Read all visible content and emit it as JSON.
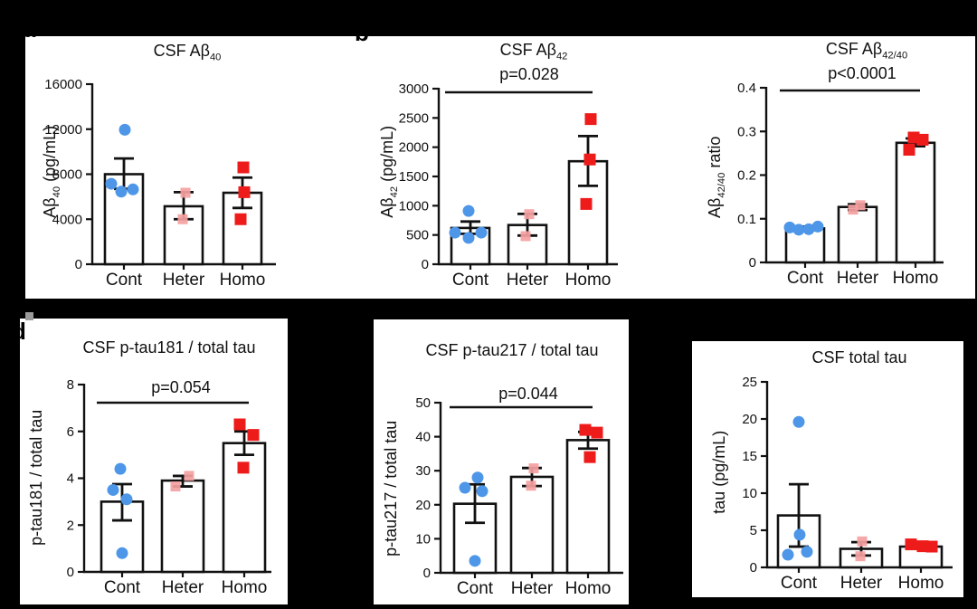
{
  "figure": {
    "background": "#000000",
    "panel_background": "#ffffff",
    "panel_labels": [
      {
        "id": "a",
        "text": "a"
      },
      {
        "id": "b",
        "text": "b"
      },
      {
        "id": "d",
        "text": "d"
      }
    ],
    "groups": [
      "Cont",
      "Heter",
      "Homo"
    ],
    "marker_colors": {
      "Cont": "#4D96E8",
      "Heter": "#F5A0A0",
      "Homo": "#EE1B1B"
    },
    "marker_shapes": {
      "Cont": "circle",
      "Heter": "square",
      "Homo": "square"
    },
    "axis_color": "#111111"
  },
  "chart_data": [
    {
      "id": "csf-ab40",
      "type": "bar",
      "title": {
        "base": "CSF Aβ",
        "sub": "40",
        "suffix": ""
      },
      "ylabel": {
        "base": "Aβ",
        "sub": "40",
        "suffix": " (pg/mL)"
      },
      "ylim": [
        0,
        16000
      ],
      "yticks": [
        0,
        4000,
        8000,
        12000,
        16000
      ],
      "ytick_labels": [
        "0",
        "4000",
        "8000",
        "12000",
        "16000"
      ],
      "categories": [
        "Cont",
        "Heter",
        "Homo"
      ],
      "bar_means": [
        8000,
        5150,
        6350
      ],
      "error_low": [
        6700,
        4000,
        5000
      ],
      "error_high": [
        9400,
        6400,
        7700
      ],
      "points": {
        "Cont": [
          [
            11950,
            1
          ],
          [
            7150,
            -14
          ],
          [
            6450,
            -3
          ],
          [
            6650,
            10
          ]
        ],
        "Heter": [
          [
            6350,
            2
          ],
          [
            4000,
            -1
          ]
        ],
        "Homo": [
          [
            8600,
            1
          ],
          [
            6400,
            2
          ],
          [
            4000,
            -2
          ]
        ]
      },
      "significance": null
    },
    {
      "id": "csf-ab42",
      "type": "bar",
      "title": {
        "base": "CSF Aβ",
        "sub": "42",
        "suffix": ""
      },
      "ylabel": {
        "base": "Aβ",
        "sub": "42",
        "suffix": " (pg/mL)"
      },
      "ylim": [
        0,
        3000
      ],
      "yticks": [
        0,
        500,
        1000,
        1500,
        2000,
        2500,
        3000
      ],
      "ytick_labels": [
        "0",
        "500",
        "1000",
        "1500",
        "2000",
        "2500",
        "3000"
      ],
      "categories": [
        "Cont",
        "Heter",
        "Homo"
      ],
      "bar_means": [
        620,
        670,
        1760
      ],
      "error_low": [
        520,
        490,
        1340
      ],
      "error_high": [
        730,
        860,
        2190
      ],
      "points": {
        "Cont": [
          [
            910,
            -2
          ],
          [
            540,
            -17
          ],
          [
            540,
            12
          ],
          [
            450,
            -2
          ]
        ],
        "Heter": [
          [
            855,
            2
          ],
          [
            480,
            -2
          ]
        ],
        "Homo": [
          [
            2480,
            3
          ],
          [
            1790,
            2
          ],
          [
            1030,
            -2
          ]
        ]
      },
      "significance": {
        "from": "Cont",
        "to": "Homo",
        "label": "p=0.028"
      }
    },
    {
      "id": "csf-ab42-40",
      "type": "bar",
      "title": {
        "base": "CSF Aβ",
        "sub": "42/40",
        "suffix": ""
      },
      "ylabel": {
        "base": "Aβ",
        "sub": "42/40",
        "suffix": " ratio"
      },
      "ylim": [
        0,
        0.4
      ],
      "yticks": [
        0,
        0.1,
        0.2,
        0.3,
        0.4
      ],
      "ytick_labels": [
        "0",
        "0.1",
        "0.2",
        "0.3",
        "0.4"
      ],
      "categories": [
        "Cont",
        "Heter",
        "Homo"
      ],
      "bar_means": [
        0.078,
        0.127,
        0.274
      ],
      "error_low": [
        0.074,
        0.12,
        0.266
      ],
      "error_high": [
        0.082,
        0.133,
        0.284
      ],
      "points": {
        "Cont": [
          [
            0.08,
            -17
          ],
          [
            0.075,
            -7
          ],
          [
            0.076,
            4
          ],
          [
            0.082,
            14
          ]
        ],
        "Heter": [
          [
            0.131,
            3
          ],
          [
            0.121,
            -5
          ]
        ],
        "Homo": [
          [
            0.286,
            -2
          ],
          [
            0.281,
            8
          ],
          [
            0.258,
            -7
          ]
        ]
      },
      "significance": {
        "from": "Cont",
        "to": "Homo",
        "label": "p<0.0001"
      }
    },
    {
      "id": "csf-ptau181",
      "type": "bar",
      "title": {
        "base": "CSF p-tau181 / total tau",
        "sub": "",
        "suffix": ""
      },
      "ylabel": {
        "base": "p-tau181 / total tau",
        "sub": "",
        "suffix": ""
      },
      "ylim": [
        0,
        8
      ],
      "yticks": [
        0,
        2,
        4,
        6,
        8
      ],
      "ytick_labels": [
        "0",
        "2",
        "4",
        "6",
        "8"
      ],
      "categories": [
        "Cont",
        "Heter",
        "Homo"
      ],
      "bar_means": [
        3.0,
        3.9,
        5.5
      ],
      "error_low": [
        2.2,
        3.65,
        5.0
      ],
      "error_high": [
        3.75,
        4.1,
        6.0
      ],
      "points": {
        "Cont": [
          [
            4.4,
            -2
          ],
          [
            3.5,
            -10
          ],
          [
            3.1,
            5
          ],
          [
            0.8,
            0
          ]
        ],
        "Heter": [
          [
            4.1,
            7
          ],
          [
            3.65,
            -8
          ]
        ],
        "Homo": [
          [
            6.3,
            -5
          ],
          [
            5.85,
            10
          ],
          [
            4.45,
            -1
          ]
        ]
      },
      "significance": {
        "from": "Cont",
        "to": "Homo",
        "label": "p=0.054"
      }
    },
    {
      "id": "csf-ptau217",
      "type": "bar",
      "title": {
        "base": "CSF p-tau217 / total tau",
        "sub": "",
        "suffix": ""
      },
      "ylabel": {
        "base": "p-tau217 / total tau",
        "sub": "",
        "suffix": ""
      },
      "ylim": [
        0,
        50
      ],
      "yticks": [
        0,
        10,
        20,
        30,
        40,
        50
      ],
      "ytick_labels": [
        "0",
        "10",
        "20",
        "30",
        "40",
        "50"
      ],
      "categories": [
        "Cont",
        "Heter",
        "Homo"
      ],
      "bar_means": [
        20.3,
        28.2,
        39.0
      ],
      "error_low": [
        14.7,
        25.5,
        36.5
      ],
      "error_high": [
        26.0,
        30.8,
        41.4
      ],
      "points": {
        "Cont": [
          [
            28,
            3
          ],
          [
            25,
            -11
          ],
          [
            24,
            8
          ],
          [
            3.5,
            0
          ]
        ],
        "Heter": [
          [
            30.7,
            2
          ],
          [
            25.6,
            -1
          ]
        ],
        "Homo": [
          [
            42,
            -3
          ],
          [
            41.2,
            10
          ],
          [
            34,
            2
          ]
        ]
      },
      "significance": {
        "from": "Cont",
        "to": "Homo",
        "label": "p=0.044"
      }
    },
    {
      "id": "csf-totaltau",
      "type": "bar",
      "title": {
        "base": "CSF total tau",
        "sub": "",
        "suffix": ""
      },
      "ylabel": {
        "base": "tau (pg/mL)",
        "sub": "",
        "suffix": ""
      },
      "ylim": [
        0,
        25
      ],
      "yticks": [
        0,
        5,
        10,
        15,
        20,
        25
      ],
      "ytick_labels": [
        "0",
        "5",
        "10",
        "15",
        "20",
        "25"
      ],
      "categories": [
        "Cont",
        "Heter",
        "Homo"
      ],
      "bar_means": [
        7.0,
        2.5,
        2.8
      ],
      "error_low": [
        2.8,
        1.6,
        2.55
      ],
      "error_high": [
        11.2,
        3.4,
        3.05
      ],
      "points": {
        "Cont": [
          [
            19.6,
            0
          ],
          [
            4.4,
            1
          ],
          [
            1.7,
            -12
          ],
          [
            2.1,
            9
          ]
        ],
        "Heter": [
          [
            3.5,
            1
          ],
          [
            1.5,
            -1
          ]
        ],
        "Homo": [
          [
            3.1,
            -11
          ],
          [
            2.85,
            2
          ],
          [
            2.8,
            12
          ]
        ]
      },
      "significance": null
    }
  ]
}
